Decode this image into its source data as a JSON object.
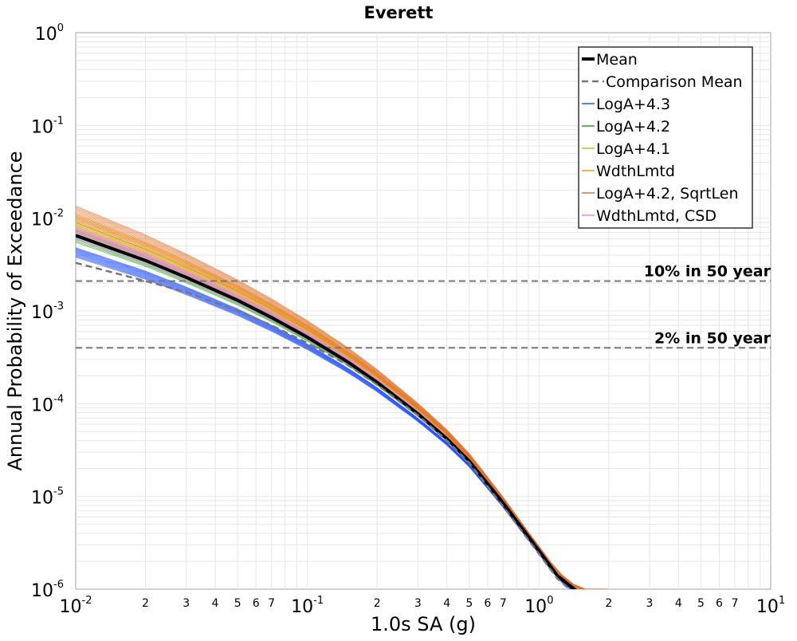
{
  "chart_data": {
    "type": "line",
    "title": "Everett",
    "xlabel": "1.0s SA (g)",
    "ylabel": "Annual Probability of Exceedance",
    "x_scale": "log",
    "y_scale": "log",
    "xlim": [
      0.01,
      10
    ],
    "ylim": [
      1e-06,
      1
    ],
    "grid": true,
    "legend_position": "top-right",
    "x_major_ticks": [
      {
        "base": "10",
        "exp": "-2"
      },
      {
        "base": "10",
        "exp": "-1"
      },
      {
        "base": "10",
        "exp": "0"
      },
      {
        "base": "10",
        "exp": "1"
      }
    ],
    "x_minor_tick_labels": [
      "2",
      "3",
      "4",
      "5",
      "6",
      "7"
    ],
    "y_major_ticks": [
      {
        "base": "10",
        "exp": "0"
      },
      {
        "base": "10",
        "exp": "-1"
      },
      {
        "base": "10",
        "exp": "-2"
      },
      {
        "base": "10",
        "exp": "-3"
      },
      {
        "base": "10",
        "exp": "-4"
      },
      {
        "base": "10",
        "exp": "-5"
      },
      {
        "base": "10",
        "exp": "-6"
      }
    ],
    "reference_lines": [
      {
        "label": "10% in 50 year",
        "y": 0.0021
      },
      {
        "label": "2% in 50 year",
        "y": 0.0004
      }
    ],
    "series": [
      {
        "name": "Mean",
        "color": "#000000",
        "style": "solid-thick",
        "x": [
          0.01,
          0.02,
          0.03,
          0.05,
          0.07,
          0.1,
          0.15,
          0.2,
          0.3,
          0.4,
          0.5,
          0.7,
          1.0,
          1.2,
          1.5
        ],
        "y": [
          0.0065,
          0.0035,
          0.0023,
          0.0013,
          0.00085,
          0.00052,
          0.00028,
          0.00017,
          7.8e-05,
          4.2e-05,
          2.4e-05,
          8.5e-06,
          2.6e-06,
          1.4e-06,
          9e-07
        ]
      },
      {
        "name": "Comparison Mean",
        "color": "#777777",
        "style": "dashed",
        "x": [
          0.01,
          0.02,
          0.03,
          0.05,
          0.07,
          0.1,
          0.15,
          0.2,
          0.3,
          0.4,
          0.5,
          0.7,
          1.0,
          1.2,
          1.5
        ],
        "y": [
          0.0033,
          0.0021,
          0.0016,
          0.001,
          0.0007,
          0.00045,
          0.00026,
          0.00016,
          7.5e-05,
          4e-05,
          2.3e-05,
          7.8e-06,
          2.4e-06,
          1.3e-06,
          8e-07
        ]
      },
      {
        "name": "LogA+4.3",
        "color": "#1f4fff",
        "style": "solid-thin",
        "y_low": 0.0038,
        "y_high": 0.0048
      },
      {
        "name": "LogA+4.2",
        "color": "#2ca02c",
        "style": "solid-thin",
        "y_low": 0.0055,
        "y_high": 0.0075
      },
      {
        "name": "LogA+4.1",
        "color": "#b5c435",
        "style": "solid-thin",
        "y_low": 0.0065,
        "y_high": 0.009
      },
      {
        "name": "WdthLmtd",
        "color": "#f0a30a",
        "style": "solid-thin",
        "y_low": 0.0075,
        "y_high": 0.011
      },
      {
        "name": "LogA+4.2, SqrtLen",
        "color": "#e0702a",
        "style": "solid-thin",
        "y_low": 0.009,
        "y_high": 0.0135
      },
      {
        "name": "WdthLmtd, CSD",
        "color": "#ee82ee",
        "style": "solid-thin",
        "y_low": 0.006,
        "y_high": 0.008
      }
    ]
  }
}
